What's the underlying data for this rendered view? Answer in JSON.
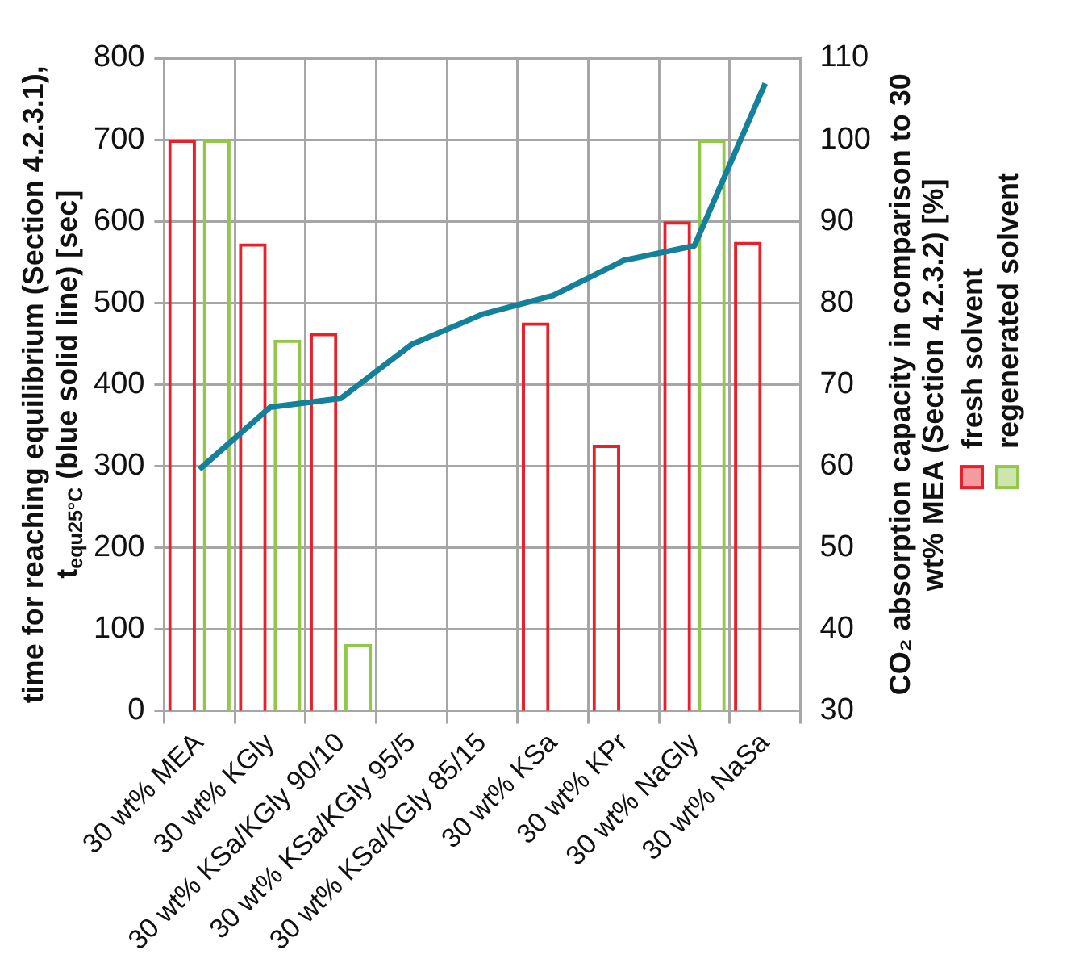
{
  "chart_data": {
    "type": "bar",
    "categories": [
      "30 wt% MEA",
      "30 wt% KGly",
      "30 wt% KSa/KGly 90/10",
      "30 wt% KSa/KGly 95/5",
      "30 wt% KSa/KGly 85/15",
      "30 wt% KSa",
      "30 wt% KPr",
      "30 wt% NaGly",
      "30 wt% NaSa"
    ],
    "ylabel": "time for reaching equilibrium (Section 4.2.3.1), t$_{equ25°C}$ (blue solid line) [sec]",
    "y2label": "CO₂ absorption capacity in comparison to 30 wt% MEA (Section 4.2.3.2) [%]",
    "series": [
      {
        "name": "fresh solvent",
        "axis": "y2",
        "color": "#e8202a",
        "values": [
          100,
          87.3,
          76.3,
          null,
          null,
          77.6,
          62.6,
          90,
          87.5
        ]
      },
      {
        "name": "regenerated solvent",
        "axis": "y2",
        "color": "#92c84a",
        "values": [
          100,
          75.5,
          38.2,
          null,
          null,
          null,
          null,
          100,
          null
        ]
      },
      {
        "type": "line",
        "axis": "y",
        "color": "#15809a",
        "values": [
          296,
          372,
          383,
          449,
          486,
          509,
          552,
          570,
          769
        ]
      }
    ],
    "ylim": [
      0,
      800
    ],
    "yticks": [
      0,
      100,
      200,
      300,
      400,
      500,
      600,
      700,
      800
    ],
    "y2lim": [
      30,
      110
    ],
    "y2ticks": [
      30,
      40,
      50,
      60,
      70,
      80,
      90,
      100,
      110
    ],
    "grid": true,
    "legend": "right",
    "marker": "none",
    "line_style": "solid"
  }
}
